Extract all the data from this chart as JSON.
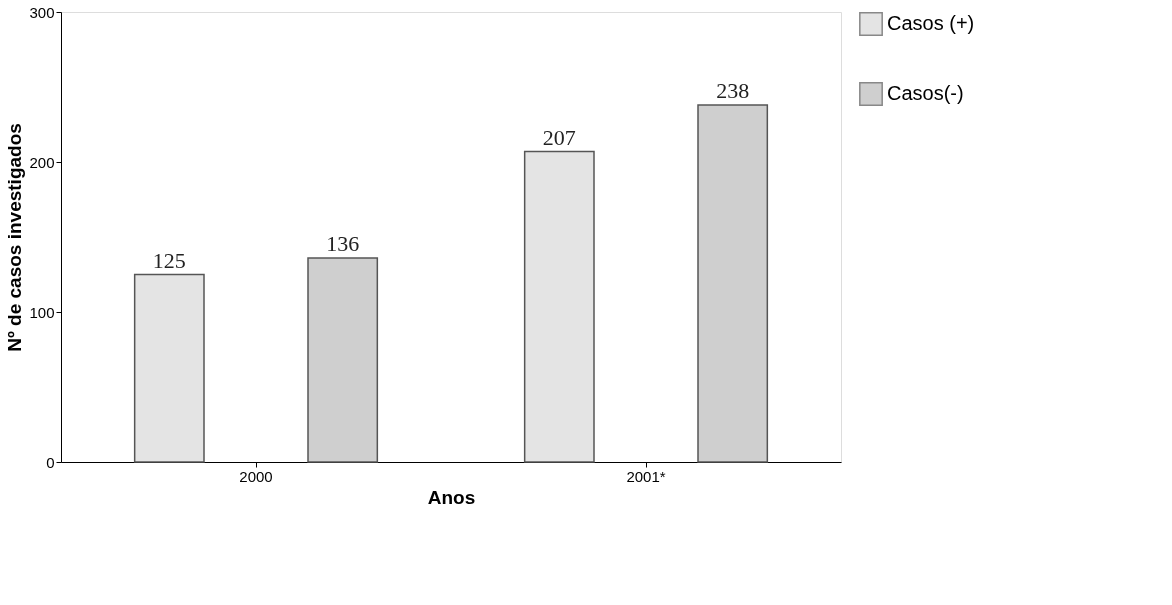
{
  "chart_data": {
    "type": "bar",
    "xlabel": "Anos",
    "ylabel": "Nº de casos investigados",
    "categories": [
      "2000",
      "2001*"
    ],
    "series": [
      {
        "name": "Casos (+)",
        "color": "#e4e4e4",
        "values": [
          125,
          207
        ]
      },
      {
        "name": "Casos(-)",
        "color": "#cfcfcf",
        "values": [
          136,
          238
        ]
      }
    ],
    "ylim": [
      0,
      300
    ],
    "yticks": [
      0,
      100,
      200,
      300
    ],
    "grid": false,
    "legend": "top right",
    "data_labels": true
  }
}
